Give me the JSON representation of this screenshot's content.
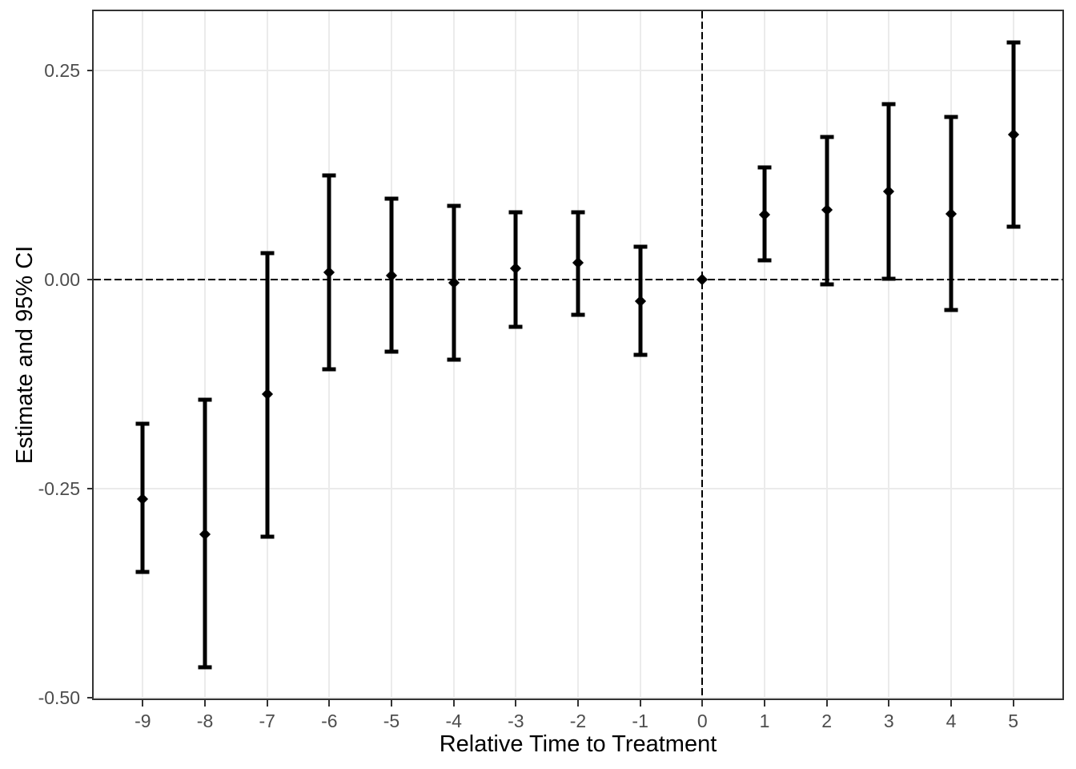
{
  "chart_data": {
    "type": "scatter",
    "subtype": "errorbar-event-study",
    "title": "",
    "xlabel": "Relative Time to Treatment",
    "ylabel": "Estimate and 95% CI",
    "legend": "none",
    "grid": "major-only",
    "xlim": [
      -9.79,
      5.79
    ],
    "ylim": [
      -0.501,
      0.321
    ],
    "x_ticks": [
      -9,
      -8,
      -7,
      -6,
      -5,
      -4,
      -3,
      -2,
      -1,
      0,
      1,
      2,
      3,
      4,
      5
    ],
    "x_tick_labels": [
      "-9",
      "-8",
      "-7",
      "-6",
      "-5",
      "-4",
      "-3",
      "-2",
      "-1",
      "0",
      "1",
      "2",
      "3",
      "4",
      "5"
    ],
    "y_ticks": [
      0.25,
      0,
      -0.25,
      -0.5
    ],
    "y_tick_labels": [
      "0.25",
      "0.00",
      "-0.25",
      "-0.50"
    ],
    "reference_lines": [
      {
        "axis": "h",
        "value": 0,
        "style": "dashed"
      },
      {
        "axis": "v",
        "value": 0,
        "style": "dashed"
      }
    ],
    "series": [
      {
        "name": "Estimate and 95% CI",
        "marker": "diamond",
        "points": [
          {
            "x": -9,
            "est": -0.262,
            "lo": -0.35,
            "hi": -0.172
          },
          {
            "x": -8,
            "est": -0.305,
            "lo": -0.464,
            "hi": -0.144
          },
          {
            "x": -7,
            "est": -0.137,
            "lo": -0.307,
            "hi": 0.032
          },
          {
            "x": -6,
            "est": 0.009,
            "lo": -0.107,
            "hi": 0.125
          },
          {
            "x": -5,
            "est": 0.005,
            "lo": -0.086,
            "hi": 0.097
          },
          {
            "x": -4,
            "est": -0.004,
            "lo": -0.096,
            "hi": 0.088
          },
          {
            "x": -3,
            "est": 0.013,
            "lo": -0.056,
            "hi": 0.081
          },
          {
            "x": -2,
            "est": 0.02,
            "lo": -0.042,
            "hi": 0.081
          },
          {
            "x": -1,
            "est": -0.026,
            "lo": -0.09,
            "hi": 0.039
          },
          {
            "x": 0,
            "est": 0.0,
            "lo": 0.0,
            "hi": 0.0
          },
          {
            "x": 1,
            "est": 0.078,
            "lo": 0.023,
            "hi": 0.134
          },
          {
            "x": 2,
            "est": 0.083,
            "lo": -0.006,
            "hi": 0.171
          },
          {
            "x": 3,
            "est": 0.105,
            "lo": 0.001,
            "hi": 0.21
          },
          {
            "x": 4,
            "est": 0.079,
            "lo": -0.036,
            "hi": 0.195
          },
          {
            "x": 5,
            "est": 0.173,
            "lo": 0.063,
            "hi": 0.284
          }
        ]
      }
    ],
    "colors": {
      "background": "#ffffff",
      "panel_background": "#ffffff",
      "panel_border": "#333333",
      "grid": "#ebebeb",
      "tick_text": "#4d4d4d",
      "axis_title": "#000000",
      "data": "#000000",
      "reference_line": "#000000"
    }
  }
}
